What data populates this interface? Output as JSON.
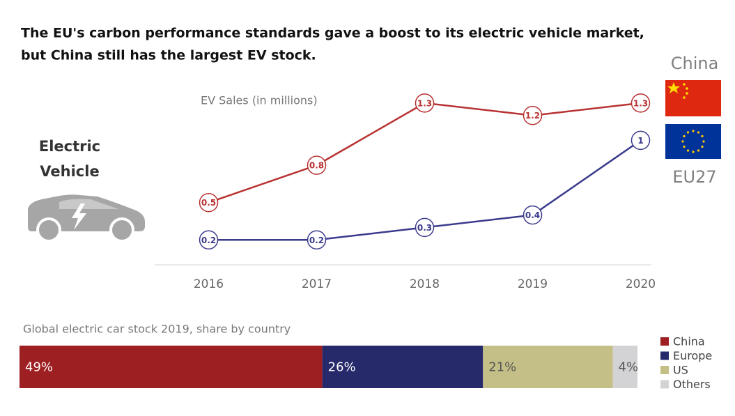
{
  "header": {
    "title": [
      "The EU's carbon performance standards gave a boost to its electric vehicle market,",
      "but China still has the largest EV stock."
    ]
  },
  "icon_label": "Electric Vehicle",
  "chart_data": [
    {
      "type": "line",
      "subtitle": "EV Sales (in millions)",
      "categories": [
        "2016",
        "2017",
        "2018",
        "2019",
        "2020"
      ],
      "ylim": [
        0,
        1.4
      ],
      "series": [
        {
          "name": "China",
          "color": "#b83232",
          "values": [
            0.5,
            0.8,
            1.3,
            1.2,
            1.3
          ]
        },
        {
          "name": "EU27",
          "color": "#3a3a8c",
          "values": [
            0.2,
            0.2,
            0.3,
            0.4,
            1.0
          ]
        }
      ]
    },
    {
      "type": "stacked-hbar",
      "subtitle": "Global electric car stock 2019, share by country",
      "xlim": [
        0,
        100
      ],
      "series": [
        {
          "name": "China",
          "color": "#9e1f22",
          "values": [
            49
          ],
          "value_labels": [
            "49%"
          ]
        },
        {
          "name": "Europe",
          "color": "#262a6b",
          "values": [
            26
          ],
          "value_labels": [
            "26%"
          ]
        },
        {
          "name": "US",
          "color": "#c4bf86",
          "values": [
            21
          ],
          "value_labels": [
            "21%"
          ]
        },
        {
          "name": "Others",
          "color": "#d3d3d5",
          "values": [
            4
          ],
          "value_labels": [
            "4%"
          ]
        }
      ]
    }
  ]
}
